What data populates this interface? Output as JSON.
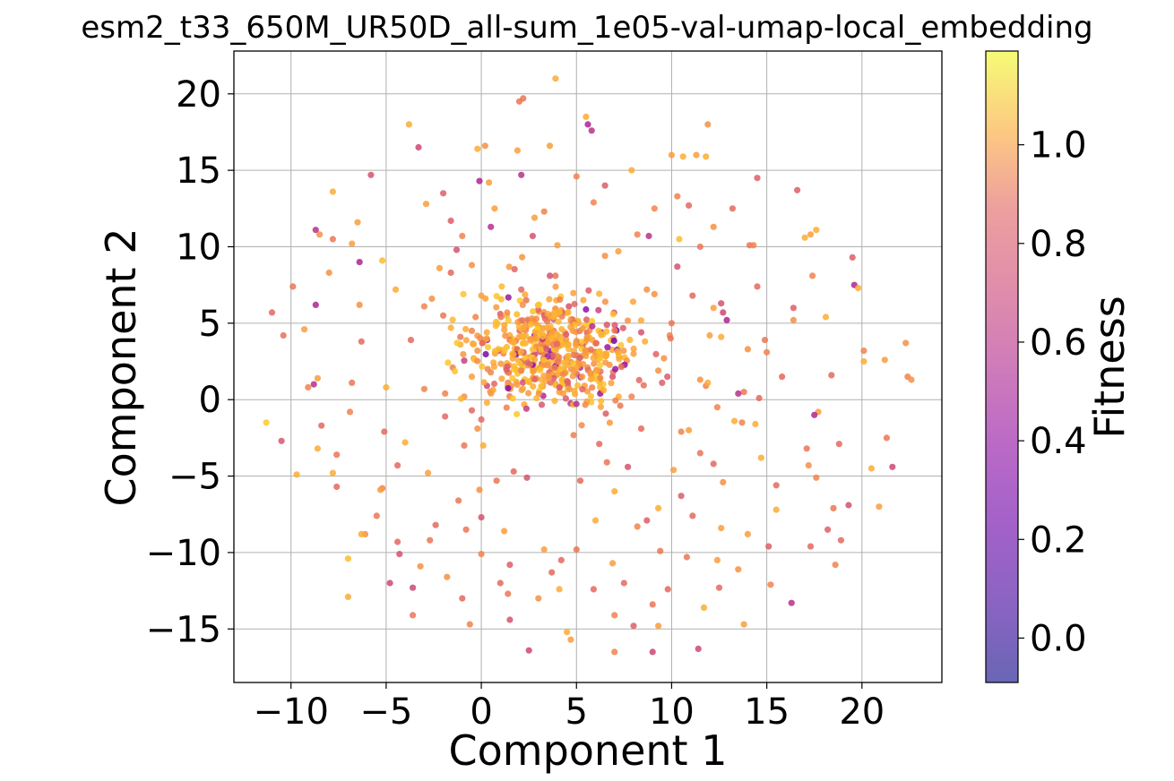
{
  "chart_data": {
    "type": "scatter",
    "title": "esm2_t33_650M_UR50D_all-sum_1e05-val-umap-local_embedding",
    "xlabel": "Component 1",
    "ylabel": "Component 2",
    "xlim": [
      -13,
      24.2
    ],
    "ylim": [
      -18.5,
      22.8
    ],
    "xticks": [
      -10,
      -5,
      0,
      5,
      10,
      15,
      20
    ],
    "xtick_labels": [
      "−10",
      "−5",
      "0",
      "5",
      "10",
      "15",
      "20"
    ],
    "yticks": [
      -15,
      -10,
      -5,
      0,
      5,
      10,
      15,
      20
    ],
    "ytick_labels": [
      "−15",
      "−10",
      "−5",
      "0",
      "5",
      "10",
      "15",
      "20"
    ],
    "grid": true,
    "colormap": "plasma",
    "colorbar": {
      "label": "Fitness",
      "range": [
        -0.09,
        1.19
      ],
      "ticks": [
        0.0,
        0.2,
        0.4,
        0.6,
        0.8,
        1.0
      ],
      "tick_labels": [
        "0.0",
        "0.2",
        "0.4",
        "0.6",
        "0.8",
        "1.0"
      ]
    },
    "points": [
      [
        -11.3,
        -1.5,
        1.05
      ],
      [
        -11.0,
        5.7,
        0.7
      ],
      [
        -10.5,
        -2.7,
        0.62
      ],
      [
        -10.4,
        4.2,
        0.72
      ],
      [
        -9.9,
        7.4,
        0.75
      ],
      [
        -9.7,
        -4.9,
        0.95
      ],
      [
        -9.3,
        4.6,
        0.9
      ],
      [
        -9.1,
        0.8,
        0.8
      ],
      [
        -8.8,
        1.0,
        0.45
      ],
      [
        -8.7,
        6.2,
        0.4
      ],
      [
        -8.7,
        11.1,
        0.45
      ],
      [
        -8.6,
        1.4,
        0.9
      ],
      [
        -8.6,
        -3.2,
        0.95
      ],
      [
        -8.5,
        10.8,
        0.85
      ],
      [
        -8.4,
        -1.7,
        0.7
      ],
      [
        -8.0,
        8.3,
        0.85
      ],
      [
        -7.8,
        13.6,
        0.95
      ],
      [
        -7.8,
        -4.8,
        0.95
      ],
      [
        -7.6,
        -5.7,
        0.7
      ],
      [
        -7.6,
        -3.6,
        0.75
      ],
      [
        -7.0,
        -10.4,
        1.0
      ],
      [
        -7.0,
        -12.9,
        0.95
      ],
      [
        -6.9,
        -0.8,
        0.8
      ],
      [
        -6.8,
        1.1,
        0.75
      ],
      [
        -6.8,
        10.2,
        0.9
      ],
      [
        -6.5,
        11.6,
        0.9
      ],
      [
        -6.4,
        9.0,
        0.4
      ],
      [
        -6.4,
        6.2,
        0.85
      ],
      [
        -6.3,
        3.8,
        0.7
      ],
      [
        -6.1,
        -8.8,
        0.85
      ],
      [
        -5.8,
        14.7,
        0.6
      ],
      [
        -5.5,
        -7.6,
        0.75
      ],
      [
        -5.2,
        9.1,
        1.0
      ],
      [
        -5.2,
        -5.8,
        0.8
      ],
      [
        -5.1,
        -2.1,
        0.7
      ],
      [
        -5.0,
        0.8,
        0.95
      ],
      [
        -4.8,
        -12.0,
        0.55
      ],
      [
        -4.5,
        7.2,
        0.95
      ],
      [
        -4.4,
        -9.3,
        0.7
      ],
      [
        -4.3,
        -10.1,
        0.6
      ],
      [
        -4.0,
        -2.8,
        0.95
      ],
      [
        -3.8,
        18.0,
        0.95
      ],
      [
        -3.7,
        3.9,
        0.7
      ],
      [
        -3.6,
        -14.1,
        0.75
      ],
      [
        -3.6,
        -12.3,
        0.55
      ],
      [
        -3.3,
        16.5,
        0.55
      ],
      [
        -3.2,
        -10.9,
        0.85
      ],
      [
        -3.0,
        0.7,
        0.8
      ],
      [
        -2.9,
        12.8,
        0.9
      ],
      [
        -2.8,
        -4.8,
        0.9
      ],
      [
        -2.7,
        -9.2,
        0.75
      ],
      [
        -2.6,
        6.6,
        0.85
      ],
      [
        -2.4,
        -8.2,
        0.7
      ],
      [
        -2.2,
        8.6,
        0.9
      ],
      [
        -2.0,
        13.5,
        0.65
      ],
      [
        -2.0,
        5.5,
        0.75
      ],
      [
        -1.9,
        0.4,
        0.8
      ],
      [
        -1.9,
        -1.1,
        0.7
      ],
      [
        -1.8,
        -11.6,
        0.85
      ],
      [
        -1.6,
        11.7,
        0.65
      ],
      [
        -1.5,
        2.1,
        0.8
      ],
      [
        -1.3,
        9.8,
        0.6
      ],
      [
        -1.2,
        -6.6,
        0.75
      ],
      [
        -1.1,
        4.1,
        0.75
      ],
      [
        -1.0,
        10.7,
        0.8
      ],
      [
        -1.0,
        -13.0,
        0.7
      ],
      [
        -0.9,
        0.2,
        0.85
      ],
      [
        -0.8,
        -8.5,
        0.75
      ],
      [
        -0.6,
        -14.7,
        0.8
      ],
      [
        -0.5,
        -0.7,
        0.7
      ],
      [
        -0.5,
        1.5,
        0.9
      ],
      [
        -0.3,
        5.4,
        0.8
      ],
      [
        -0.2,
        16.4,
        0.95
      ],
      [
        -0.1,
        14.3,
        0.4
      ],
      [
        0.0,
        -7.7,
        0.6
      ],
      [
        0.0,
        -10.1,
        0.8
      ],
      [
        0.1,
        -3.0,
        0.95
      ],
      [
        0.2,
        16.6,
        0.85
      ],
      [
        0.3,
        0.9,
        0.55
      ],
      [
        0.4,
        14.2,
        0.9
      ],
      [
        0.5,
        11.3,
        0.45
      ],
      [
        0.7,
        12.5,
        0.9
      ],
      [
        0.8,
        -5.3,
        0.75
      ],
      [
        1.0,
        -12.0,
        0.7
      ],
      [
        1.2,
        -8.6,
        0.9
      ],
      [
        1.4,
        -12.7,
        0.75
      ],
      [
        1.5,
        -14.4,
        0.6
      ],
      [
        1.5,
        -10.8,
        0.65
      ],
      [
        1.7,
        -4.7,
        0.7
      ],
      [
        1.9,
        16.3,
        0.9
      ],
      [
        2.0,
        19.5,
        0.75
      ],
      [
        2.1,
        14.7,
        0.45
      ],
      [
        2.2,
        19.7,
        0.75
      ],
      [
        2.4,
        -5.1,
        0.6
      ],
      [
        2.5,
        -16.4,
        0.55
      ],
      [
        2.7,
        10.7,
        0.6
      ],
      [
        2.8,
        11.9,
        0.9
      ],
      [
        3.0,
        -13.0,
        0.85
      ],
      [
        3.3,
        -9.8,
        0.9
      ],
      [
        3.3,
        12.3,
        0.8
      ],
      [
        3.6,
        16.6,
        0.9
      ],
      [
        3.7,
        -11.3,
        0.7
      ],
      [
        3.9,
        21.0,
        0.95
      ],
      [
        4.0,
        10.1,
        0.9
      ],
      [
        4.1,
        -12.4,
        0.95
      ],
      [
        4.2,
        -10.5,
        0.7
      ],
      [
        4.5,
        -15.2,
        0.95
      ],
      [
        4.7,
        -15.7,
        0.9
      ],
      [
        5.0,
        14.6,
        0.8
      ],
      [
        5.0,
        -9.8,
        0.75
      ],
      [
        5.2,
        -5.3,
        0.7
      ],
      [
        5.5,
        18.5,
        0.95
      ],
      [
        5.6,
        18.0,
        0.4
      ],
      [
        5.8,
        17.6,
        0.45
      ],
      [
        5.9,
        12.9,
        0.8
      ],
      [
        5.9,
        -12.4,
        0.7
      ],
      [
        6.0,
        -7.9,
        0.95
      ],
      [
        6.2,
        -2.9,
        0.7
      ],
      [
        6.5,
        14.0,
        0.65
      ],
      [
        6.5,
        9.4,
        0.85
      ],
      [
        6.6,
        -4.1,
        0.75
      ],
      [
        6.9,
        -10.7,
        0.9
      ],
      [
        7.0,
        -6.0,
        0.95
      ],
      [
        7.0,
        -14.1,
        0.8
      ],
      [
        7.0,
        -16.5,
        0.8
      ],
      [
        7.2,
        9.7,
        0.9
      ],
      [
        7.5,
        -12.0,
        0.7
      ],
      [
        7.7,
        -4.4,
        0.6
      ],
      [
        7.9,
        15.0,
        0.95
      ],
      [
        8.0,
        -14.8,
        0.65
      ],
      [
        8.2,
        10.8,
        0.8
      ],
      [
        8.2,
        -8.3,
        0.8
      ],
      [
        8.4,
        -1.9,
        0.7
      ],
      [
        8.7,
        -7.9,
        0.65
      ],
      [
        8.8,
        10.7,
        0.45
      ],
      [
        9.0,
        -13.4,
        0.75
      ],
      [
        9.0,
        -16.5,
        0.55
      ],
      [
        9.1,
        12.5,
        0.8
      ],
      [
        9.3,
        -7.1,
        0.95
      ],
      [
        9.3,
        -14.8,
        0.9
      ],
      [
        9.4,
        -9.9,
        0.75
      ],
      [
        9.8,
        -12.4,
        0.7
      ],
      [
        10.0,
        16.0,
        0.9
      ],
      [
        10.1,
        -4.6,
        0.9
      ],
      [
        10.4,
        10.5,
        1.0
      ],
      [
        10.5,
        -6.3,
        0.65
      ],
      [
        10.6,
        15.9,
        0.95
      ],
      [
        10.8,
        -10.3,
        0.75
      ],
      [
        10.9,
        12.7,
        0.7
      ],
      [
        11.1,
        -7.6,
        0.7
      ],
      [
        11.3,
        16.0,
        0.9
      ],
      [
        11.4,
        -16.3,
        0.55
      ],
      [
        11.5,
        -3.5,
        0.75
      ],
      [
        11.7,
        -13.6,
        0.95
      ],
      [
        11.8,
        15.9,
        0.95
      ],
      [
        11.9,
        18.0,
        0.85
      ],
      [
        12.2,
        -4.2,
        0.7
      ],
      [
        12.4,
        -10.5,
        0.9
      ],
      [
        12.5,
        -12.3,
        0.7
      ],
      [
        12.6,
        -8.4,
        0.9
      ],
      [
        12.7,
        -5.4,
        0.85
      ],
      [
        13.2,
        12.5,
        0.7
      ],
      [
        13.5,
        -11.1,
        0.85
      ],
      [
        13.8,
        -14.7,
        0.9
      ],
      [
        14.0,
        -8.8,
        0.9
      ],
      [
        14.1,
        10.1,
        0.75
      ],
      [
        14.5,
        14.5,
        0.65
      ],
      [
        14.7,
        -3.8,
        0.95
      ],
      [
        15.1,
        -9.6,
        0.65
      ],
      [
        15.2,
        -12.1,
        0.8
      ],
      [
        15.5,
        -7.2,
        0.95
      ],
      [
        15.5,
        -5.6,
        0.7
      ],
      [
        16.3,
        -13.3,
        0.45
      ],
      [
        16.6,
        13.7,
        0.65
      ],
      [
        17.1,
        -3.2,
        0.75
      ],
      [
        17.2,
        -4.3,
        0.85
      ],
      [
        17.3,
        -9.6,
        0.7
      ],
      [
        17.6,
        -5.1,
        0.8
      ],
      [
        18.2,
        -8.5,
        0.65
      ],
      [
        18.5,
        -7.1,
        0.75
      ],
      [
        18.6,
        -10.8,
        0.8
      ],
      [
        18.8,
        -2.9,
        0.7
      ],
      [
        18.9,
        -9.2,
        0.7
      ],
      [
        19.3,
        -6.9,
        0.6
      ],
      [
        19.5,
        9.3,
        0.65
      ],
      [
        19.6,
        7.5,
        0.4
      ],
      [
        19.8,
        7.3,
        0.95
      ],
      [
        20.1,
        2.5,
        0.95
      ],
      [
        20.1,
        3.2,
        0.8
      ],
      [
        20.5,
        -4.5,
        0.95
      ],
      [
        20.9,
        -7.0,
        0.9
      ],
      [
        21.2,
        2.6,
        0.9
      ],
      [
        21.3,
        -2.5,
        0.75
      ],
      [
        21.6,
        -4.4,
        0.55
      ],
      [
        22.3,
        3.7,
        0.85
      ],
      [
        22.4,
        1.5,
        0.8
      ],
      [
        22.6,
        1.3,
        0.85
      ],
      [
        17.4,
        8.1,
        0.8
      ],
      [
        17.0,
        10.6,
        0.95
      ],
      [
        17.3,
        10.8,
        0.9
      ],
      [
        17.6,
        11.1,
        0.95
      ],
      [
        18.1,
        5.4,
        0.95
      ],
      [
        18.4,
        1.6,
        0.7
      ],
      [
        17.7,
        -0.8,
        0.9
      ],
      [
        17.5,
        -1.0,
        0.4
      ],
      [
        16.4,
        6.0,
        0.65
      ],
      [
        16.4,
        5.2,
        0.85
      ],
      [
        15.8,
        1.5,
        0.7
      ],
      [
        15.0,
        3.1,
        0.8
      ],
      [
        14.9,
        3.9,
        0.75
      ],
      [
        14.5,
        7.4,
        0.7
      ],
      [
        14.3,
        10.1,
        0.8
      ],
      [
        14.0,
        3.3,
        0.85
      ],
      [
        13.8,
        0.5,
        0.75
      ],
      [
        13.5,
        0.4,
        0.45
      ],
      [
        13.3,
        -1.4,
        0.95
      ],
      [
        13.7,
        -1.5,
        0.8
      ],
      [
        14.4,
        -1.6,
        0.95
      ],
      [
        14.6,
        0.1,
        0.7
      ],
      [
        12.6,
        6.3,
        0.6
      ],
      [
        12.2,
        6.0,
        0.9
      ],
      [
        12.6,
        4.1,
        0.95
      ],
      [
        12.2,
        11.3,
        0.85
      ],
      [
        12.0,
        4.2,
        0.9
      ],
      [
        11.5,
        10.0,
        0.75
      ],
      [
        11.1,
        6.8,
        0.7
      ],
      [
        11.5,
        1.3,
        0.85
      ],
      [
        11.8,
        0.9,
        0.8
      ],
      [
        11.9,
        1.1,
        0.95
      ],
      [
        12.4,
        -0.5,
        0.8
      ],
      [
        12.9,
        5.2,
        0.4
      ],
      [
        12.7,
        5.7,
        0.55
      ],
      [
        10.9,
        -2.0,
        0.9
      ],
      [
        10.5,
        -2.1,
        0.8
      ],
      [
        10.3,
        13.3,
        0.8
      ],
      [
        10.3,
        8.7,
        0.6
      ],
      [
        10.0,
        5.0,
        0.75
      ],
      [
        9.9,
        4.2,
        0.8
      ],
      [
        9.6,
        2.7,
        0.85
      ],
      [
        9.3,
        1.9,
        0.85
      ],
      [
        9.5,
        1.1,
        0.65
      ],
      [
        9.1,
        6.9,
        0.85
      ],
      [
        8.7,
        7.2,
        0.85
      ],
      [
        8.4,
        4.4,
        0.6
      ],
      [
        8.0,
        3.0,
        0.9
      ],
      [
        8.6,
        3.8,
        0.95
      ],
      [
        7.9,
        0.2,
        0.8
      ],
      [
        7.3,
        -0.4,
        0.75
      ],
      [
        -1.6,
        8.3,
        0.7
      ],
      [
        -3.0,
        6.1,
        0.8
      ],
      [
        -4.4,
        -4.3,
        0.7
      ],
      [
        -5.3,
        -5.9,
        0.9
      ],
      [
        -6.3,
        -8.8,
        0.95
      ],
      [
        -7.8,
        10.5,
        0.75
      ],
      [
        -0.5,
        4.5,
        0.8
      ],
      [
        -0.5,
        8.8,
        0.85
      ],
      [
        0.0,
        6.8,
        0.9
      ],
      [
        -0.2,
        -1.9,
        0.85
      ],
      [
        0.0,
        -1.3,
        0.7
      ],
      [
        -0.9,
        -3.0,
        0.75
      ],
      [
        -0.1,
        -5.9,
        0.85
      ],
      [
        0.3,
        -0.2,
        0.95
      ],
      [
        -1.6,
        4.7,
        0.95
      ],
      [
        -1.1,
        3.6,
        0.95
      ],
      [
        -0.4,
        2.7,
        0.9
      ],
      [
        -0.2,
        3.2,
        0.85
      ],
      [
        2.8,
        4.2,
        0.2
      ],
      [
        0.3,
        3.9,
        0.35
      ],
      [
        5.5,
        5.9,
        0.3
      ],
      [
        6.3,
        4.4,
        0.4
      ],
      [
        5.2,
        2.1,
        0.45
      ],
      [
        3.7,
        5.5,
        0.5
      ],
      [
        1.0,
        5.6,
        0.65
      ],
      [
        2.1,
        7.2,
        0.7
      ],
      [
        4.6,
        6.1,
        0.6
      ],
      [
        6.9,
        1.5,
        0.6
      ]
    ],
    "cluster": {
      "center": [
        3.9,
        3.2
      ],
      "spread": [
        2.0,
        1.9
      ],
      "count": 540,
      "fitness_mean": 0.9
    }
  }
}
